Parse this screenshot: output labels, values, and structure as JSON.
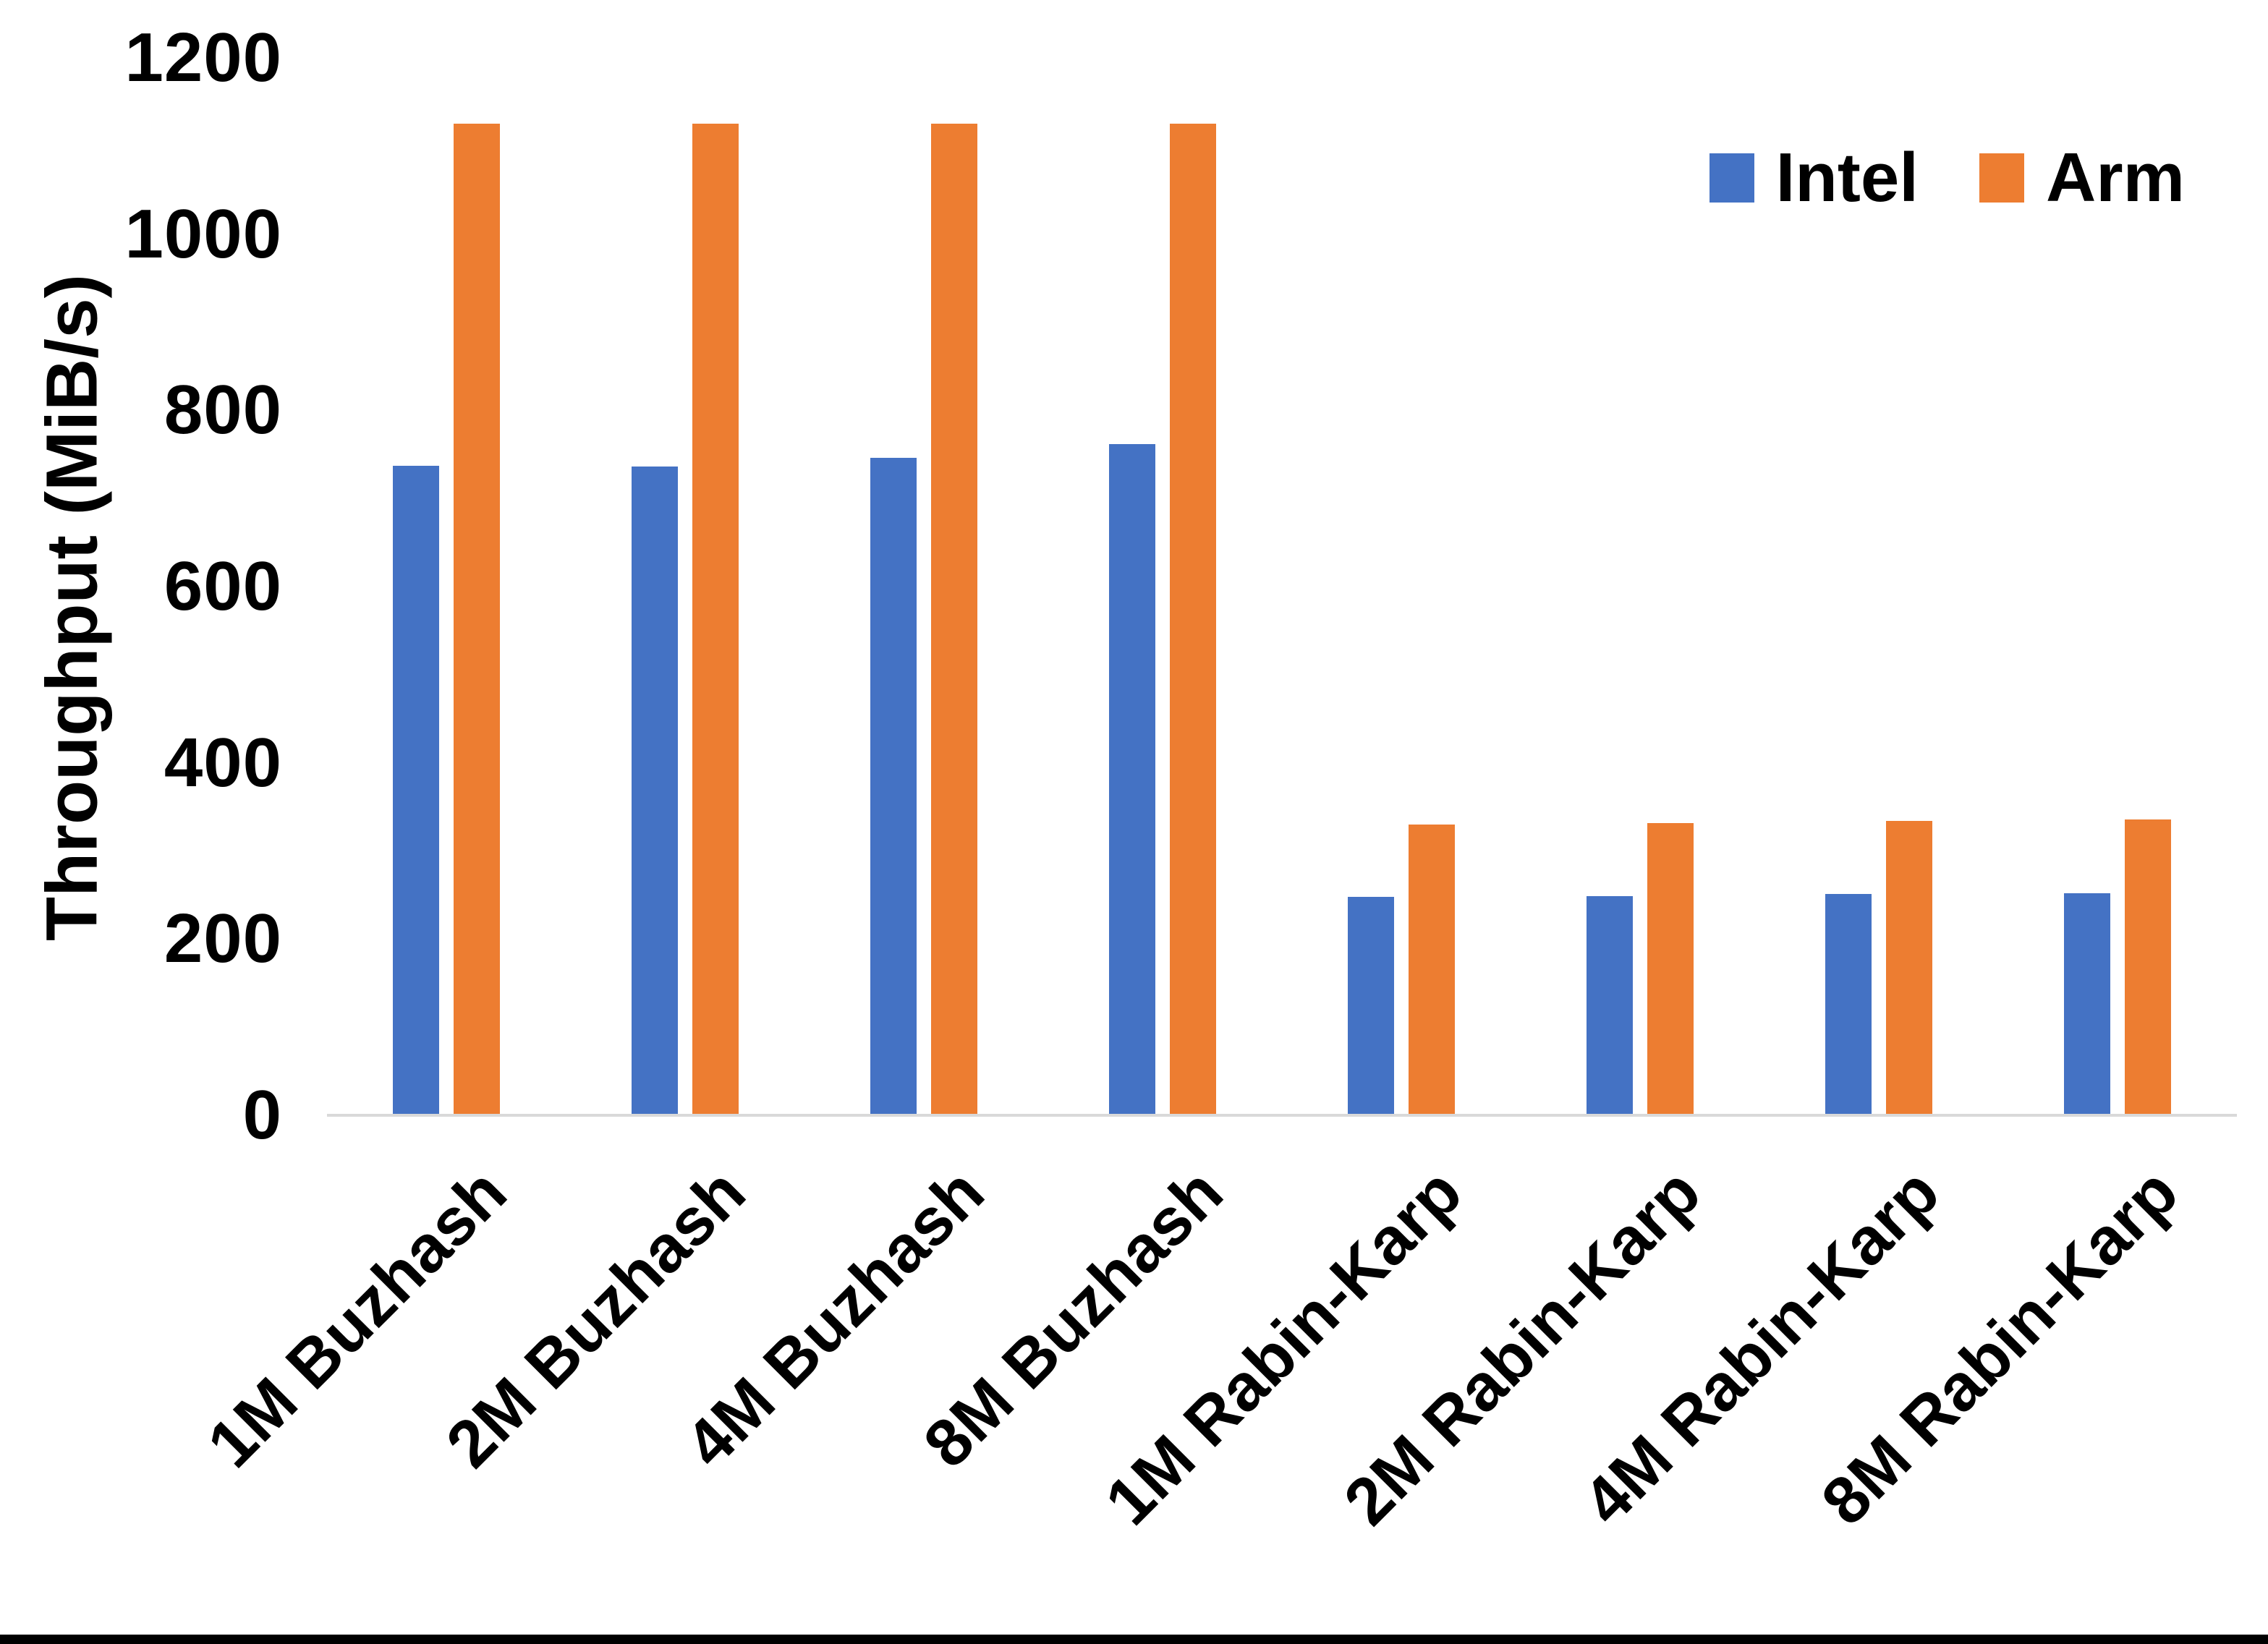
{
  "chart_data": {
    "type": "bar",
    "title": "",
    "xlabel": "",
    "ylabel": "Throughput (MiB/s)",
    "ylim": [
      0,
      1200
    ],
    "yticks": [
      0,
      200,
      400,
      600,
      800,
      1000,
      1200
    ],
    "grid": false,
    "legend_position": "top-right",
    "axis_line_color": "#d9d9d9",
    "background_color": "#ffffff",
    "categories": [
      "1M Buzhash",
      "2M Buzhash",
      "4M Buzhash",
      "8M Buzhash",
      "1M Rabin-Karp",
      "2M Rabin-Karp",
      "4M Rabin-Karp",
      "8M Rabin-Karp"
    ],
    "series": [
      {
        "name": "Intel",
        "color": "#4472c4",
        "values": [
          737,
          736,
          746,
          762,
          248,
          249,
          251,
          252
        ]
      },
      {
        "name": "Arm",
        "color": "#ed7d31",
        "values": [
          1125,
          1125,
          1125,
          1125,
          330,
          332,
          334,
          336
        ]
      }
    ]
  }
}
